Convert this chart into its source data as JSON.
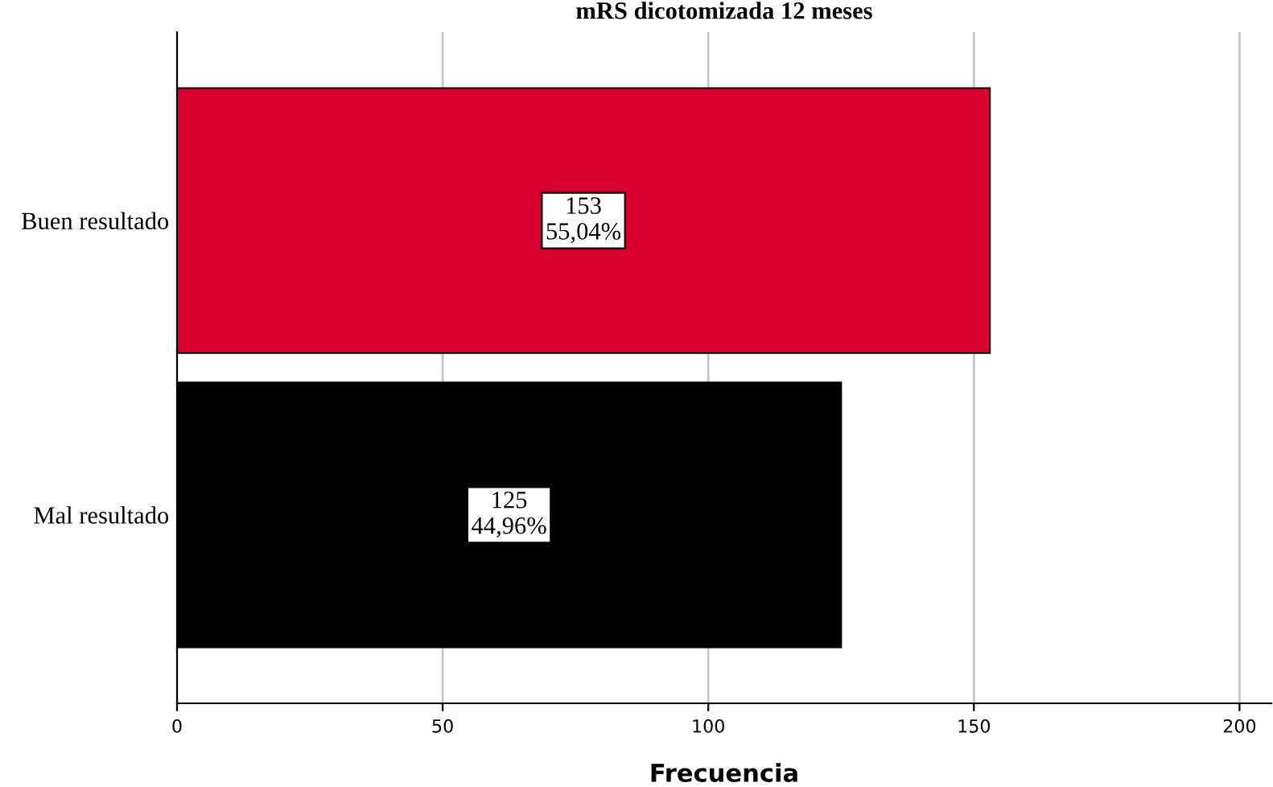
{
  "chart_data": {
    "type": "bar",
    "orientation": "horizontal",
    "title": "mRS dicotomizada 12 meses",
    "xlabel": "Frecuencia",
    "categories": [
      "Buen resultado",
      "Mal resultado"
    ],
    "values": [
      153,
      125
    ],
    "colors": [
      "#d8002c",
      "#000000"
    ],
    "value_labels": [
      "153\n55,04%",
      "125\n44,96%"
    ],
    "xlim": [
      0,
      206
    ],
    "xticks": [
      0,
      50,
      100,
      150,
      200
    ],
    "grid": "x",
    "legend": false
  }
}
